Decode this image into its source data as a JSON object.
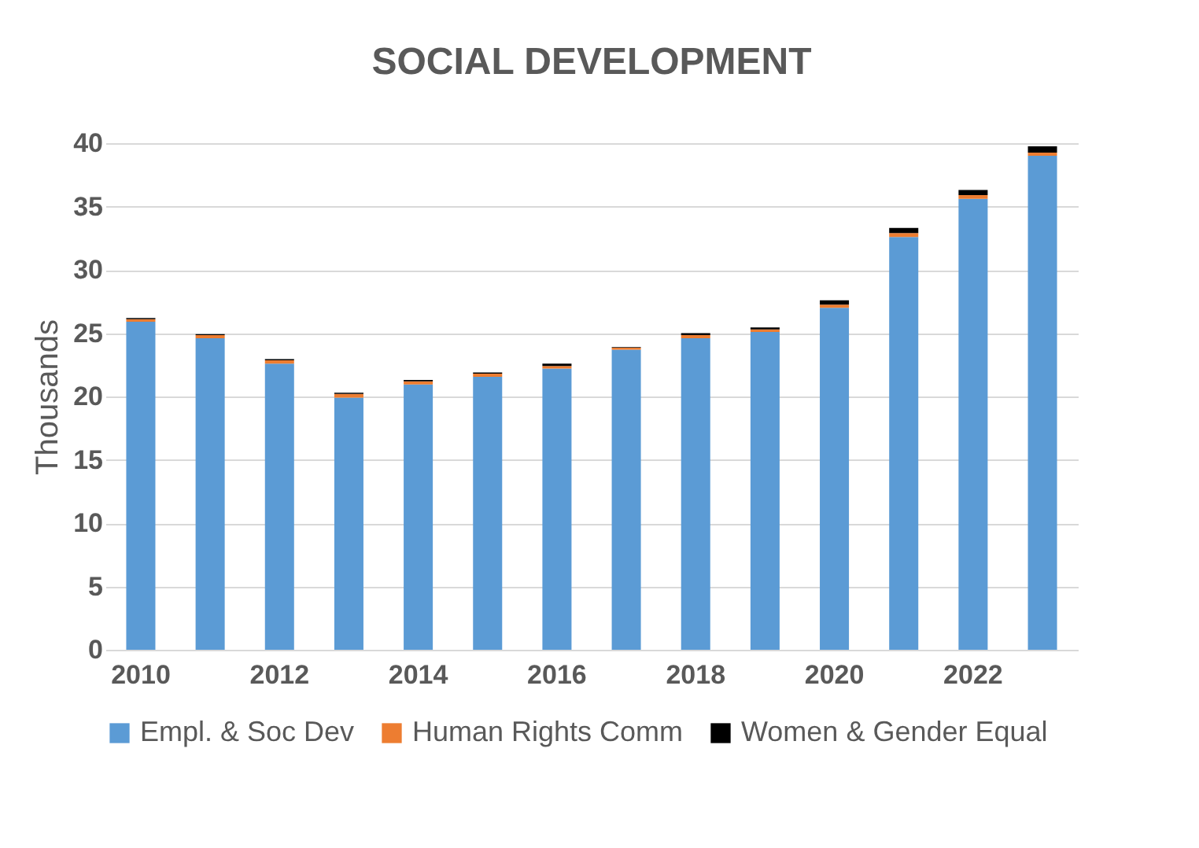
{
  "chart_data": {
    "type": "bar",
    "title": "SOCIAL DEVELOPMENT",
    "ylabel": "Thousands",
    "stacked": true,
    "categories": [
      "2010",
      null,
      "2012",
      null,
      "2014",
      null,
      "2016",
      null,
      "2018",
      null,
      "2020",
      null,
      "2022",
      null
    ],
    "series": [
      {
        "name": "Empl. & Soc Dev",
        "color": "#5b9bd5",
        "values": [
          25.9,
          24.6,
          22.6,
          19.9,
          20.95,
          21.55,
          22.2,
          23.7,
          24.6,
          25.1,
          27.0,
          32.6,
          35.6,
          39.0
        ]
      },
      {
        "name": "Human Rights Comm",
        "color": "#ed7d31",
        "values": [
          0.2,
          0.25,
          0.25,
          0.3,
          0.25,
          0.25,
          0.2,
          0.15,
          0.25,
          0.2,
          0.25,
          0.3,
          0.3,
          0.25
        ]
      },
      {
        "name": "Women & Gender Equal",
        "color": "#000000",
        "values": [
          0.1,
          0.07,
          0.1,
          0.1,
          0.1,
          0.1,
          0.2,
          0.05,
          0.15,
          0.15,
          0.35,
          0.4,
          0.4,
          0.5
        ]
      }
    ],
    "ylim": [
      0,
      40
    ],
    "yticks": [
      0,
      5,
      10,
      15,
      20,
      25,
      30,
      35,
      40
    ],
    "grid": "y",
    "legend": "bottom"
  }
}
